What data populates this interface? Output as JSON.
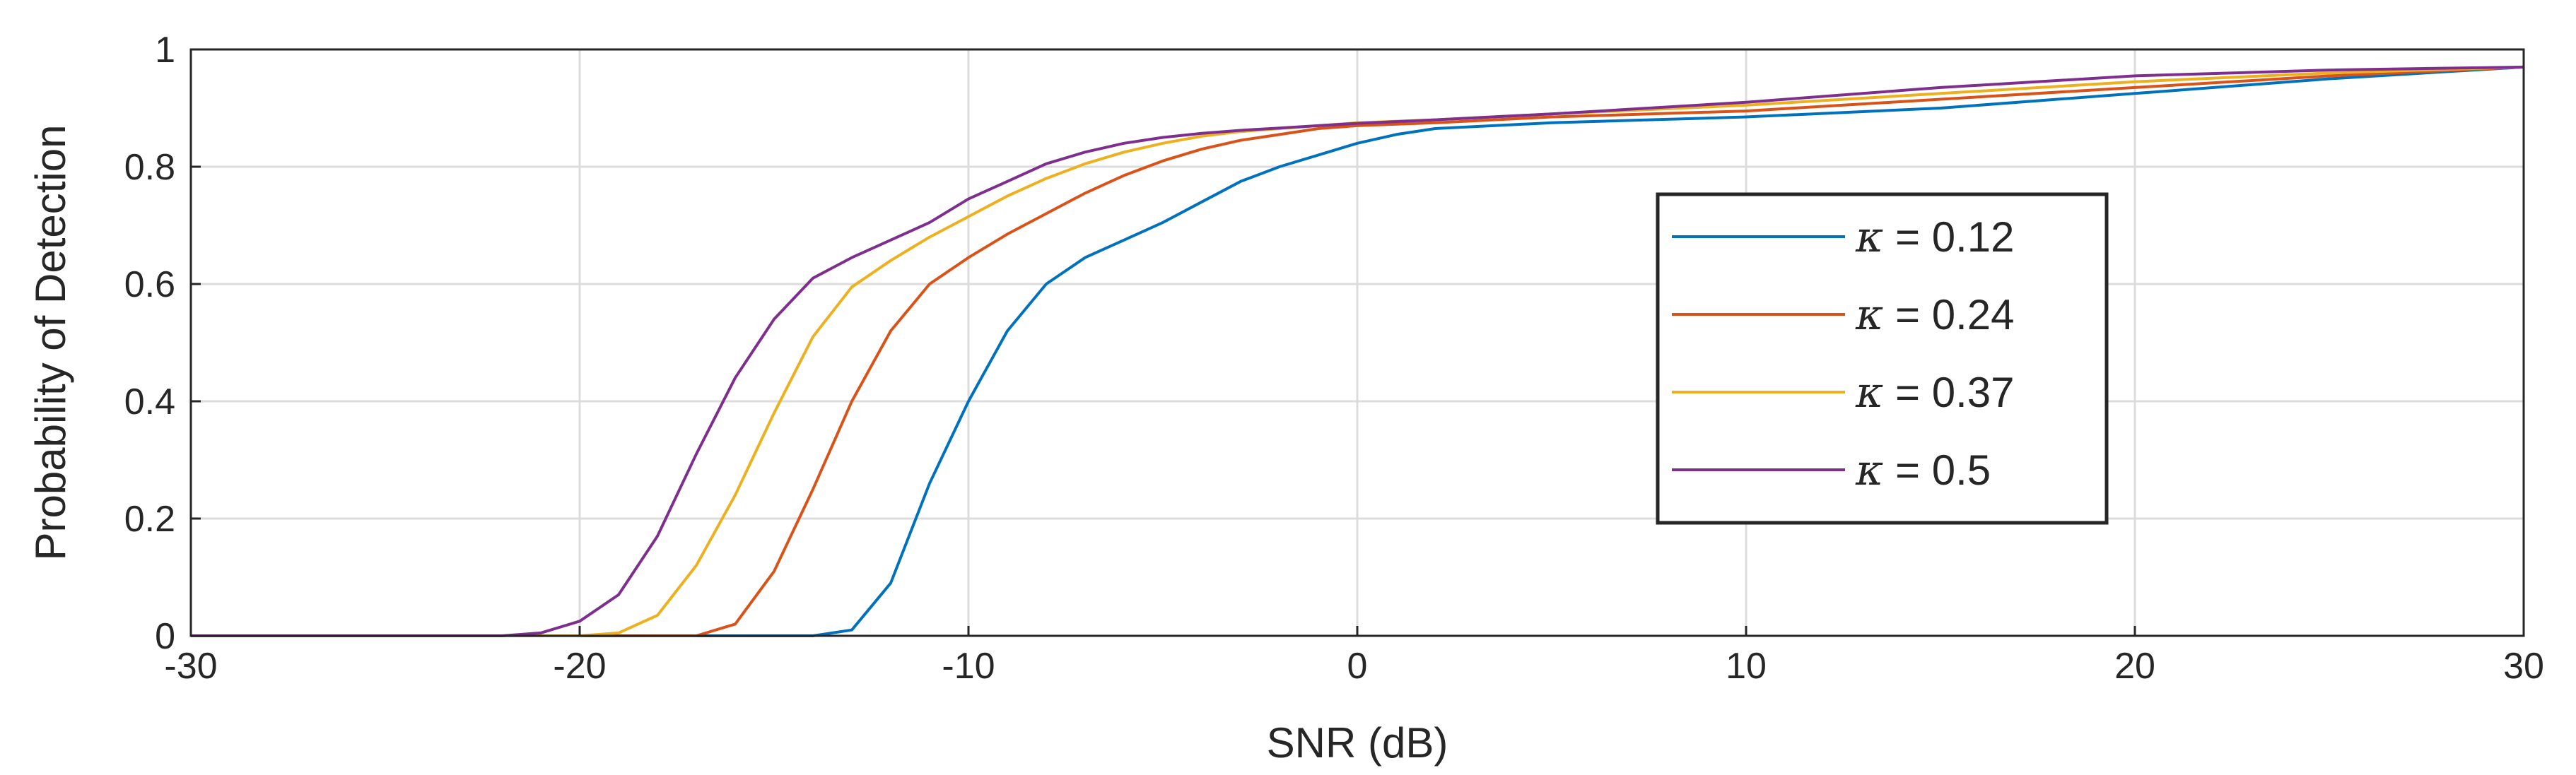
{
  "chart_data": {
    "type": "line",
    "xlabel": "SNR (dB)",
    "ylabel": "Probability of Detection",
    "xlim": [
      -30,
      30
    ],
    "ylim": [
      0,
      1
    ],
    "xticks": [
      -30,
      -20,
      -10,
      0,
      10,
      20,
      30
    ],
    "yticks": [
      0,
      0.2,
      0.4,
      0.6,
      0.8,
      1
    ],
    "xtick_labels": [
      "-30",
      "-20",
      "-10",
      "0",
      "10",
      "20",
      "30"
    ],
    "ytick_labels": [
      "0",
      "0.2",
      "0.4",
      "0.6",
      "0.8",
      "1"
    ],
    "grid": true,
    "legend_position": "right",
    "series": [
      {
        "name": "κ = 0.12",
        "color": "#0072BD",
        "x": [
          -30,
          -25,
          -20,
          -16,
          -14,
          -13,
          -12,
          -11,
          -10,
          -9,
          -8,
          -7,
          -6,
          -5,
          -4,
          -3,
          -2,
          -1,
          0,
          1,
          2,
          5,
          10,
          15,
          20,
          25,
          30
        ],
        "y": [
          0,
          0,
          0,
          0,
          0,
          0.01,
          0.09,
          0.26,
          0.4,
          0.52,
          0.6,
          0.645,
          0.675,
          0.705,
          0.74,
          0.775,
          0.8,
          0.82,
          0.84,
          0.855,
          0.865,
          0.875,
          0.885,
          0.9,
          0.925,
          0.95,
          0.97
        ]
      },
      {
        "name": "κ = 0.24",
        "color": "#D95319",
        "x": [
          -30,
          -25,
          -20,
          -18,
          -17,
          -16,
          -15,
          -14,
          -13,
          -12,
          -11,
          -10,
          -9,
          -8,
          -7,
          -6,
          -5,
          -4,
          -3,
          -2,
          -1,
          0,
          2,
          5,
          10,
          15,
          20,
          25,
          30
        ],
        "y": [
          0,
          0,
          0,
          0,
          0,
          0.02,
          0.11,
          0.25,
          0.4,
          0.52,
          0.6,
          0.645,
          0.685,
          0.72,
          0.755,
          0.785,
          0.81,
          0.83,
          0.845,
          0.855,
          0.865,
          0.87,
          0.875,
          0.885,
          0.895,
          0.915,
          0.935,
          0.955,
          0.97
        ]
      },
      {
        "name": "κ = 0.37",
        "color": "#EDB120",
        "x": [
          -30,
          -25,
          -20,
          -19,
          -18,
          -17,
          -16,
          -15,
          -14,
          -13,
          -12,
          -11,
          -10,
          -9,
          -8,
          -7,
          -6,
          -5,
          -4,
          -3,
          -2,
          -1,
          0,
          2,
          5,
          10,
          15,
          20,
          25,
          30
        ],
        "y": [
          0,
          0,
          0,
          0.005,
          0.035,
          0.12,
          0.24,
          0.38,
          0.51,
          0.595,
          0.64,
          0.68,
          0.715,
          0.75,
          0.78,
          0.805,
          0.825,
          0.84,
          0.852,
          0.86,
          0.865,
          0.87,
          0.875,
          0.88,
          0.89,
          0.905,
          0.925,
          0.945,
          0.96,
          0.97
        ]
      },
      {
        "name": "κ = 0.5",
        "color": "#7E2F8E",
        "x": [
          -30,
          -25,
          -22,
          -21,
          -20,
          -19,
          -18,
          -17,
          -16,
          -15,
          -14,
          -13,
          -12,
          -11,
          -10,
          -9,
          -8,
          -7,
          -6,
          -5,
          -4,
          -3,
          -2,
          -1,
          0,
          2,
          5,
          10,
          15,
          20,
          25,
          30
        ],
        "y": [
          0,
          0,
          0,
          0.005,
          0.025,
          0.07,
          0.17,
          0.31,
          0.44,
          0.54,
          0.61,
          0.645,
          0.675,
          0.705,
          0.745,
          0.775,
          0.805,
          0.825,
          0.84,
          0.85,
          0.857,
          0.862,
          0.866,
          0.87,
          0.874,
          0.88,
          0.89,
          0.91,
          0.935,
          0.955,
          0.965,
          0.97
        ]
      }
    ]
  }
}
